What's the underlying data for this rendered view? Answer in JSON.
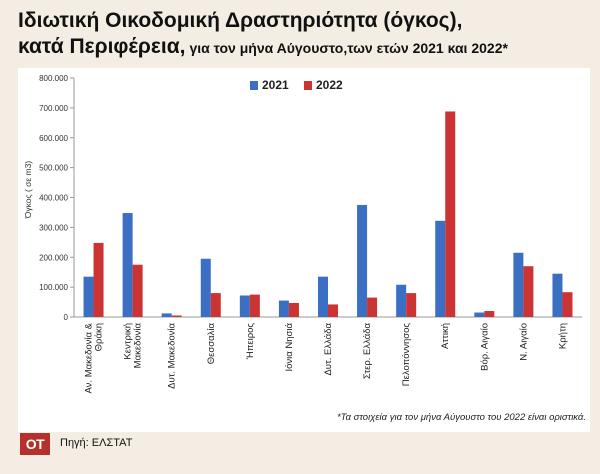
{
  "header": {
    "title_line1": "Ιδιωτική Οικοδομική Δραστηριότητα (όγκος),",
    "title_line2_bold": "κατά Περιφέρεια,",
    "title_line2_rest": "για τον μήνα Αύγουστο,των ετών 2021 και 2022*"
  },
  "footer": {
    "footnote": "*Τα στοιχεία για τον μήνα Αύγουστο του 2022 είναι οριστικά.",
    "logo": "ΟΤ",
    "source": "Πηγή: ΕΛΣΤΑΤ"
  },
  "colors": {
    "series_2021": "#3a6fc4",
    "series_2022": "#cc3333"
  },
  "chart_data": {
    "type": "bar",
    "ylabel": "Όγκος ( σε m3)",
    "ylim": [
      0,
      800000
    ],
    "yticks": [
      "0",
      "100.000",
      "200.000",
      "300.000",
      "400.000",
      "500.000",
      "600.000",
      "700.000",
      "800.000"
    ],
    "legend_position": "top-center",
    "grid": false,
    "categories": [
      "Αν. Μακεδονία & Θράκη",
      "Κεντρική Μακεδονία",
      "Δυτ. Μακεδονία",
      "Θεσσαλία",
      "Ήπειρος",
      "Ιόνια Νησιά",
      "Δυτ. Ελλάδα",
      "Στερ. Ελλάδα",
      "Πελοπόννησος",
      "Αττική",
      "Βόρ. Αιγαίο",
      "Ν. Αιγαίο",
      "Κρήτη"
    ],
    "series": [
      {
        "name": "2021",
        "values": [
          135000,
          348000,
          12000,
          195000,
          72000,
          55000,
          135000,
          375000,
          108000,
          322000,
          15000,
          215000,
          145000
        ]
      },
      {
        "name": "2022",
        "values": [
          248000,
          175000,
          5000,
          80000,
          75000,
          47000,
          42000,
          65000,
          80000,
          688000,
          20000,
          170000,
          83000
        ]
      }
    ]
  }
}
